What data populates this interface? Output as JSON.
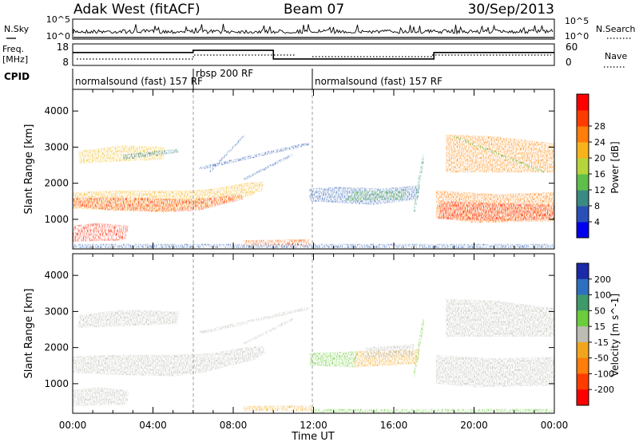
{
  "header": {
    "station": "Adak West (fitACF)",
    "beam": "Beam 07",
    "date": "30/Sep/2013"
  },
  "noise_panel": {
    "left_label": "N.Sky",
    "right_label": "N.Search",
    "left_ticks": [
      "10^5",
      "10^0"
    ],
    "right_ticks": [
      "10^5",
      "10^0"
    ]
  },
  "freq_panel": {
    "left_label_1": "Freq.",
    "left_label_2": "[MHz]",
    "right_label": "Nave",
    "left_ticks": [
      "18",
      "8"
    ],
    "right_ticks": [
      "60",
      "0"
    ]
  },
  "cpid_panel": {
    "label": "CPID",
    "segments": [
      {
        "label": "normalsound (fast) 157 RF",
        "start": 0.0,
        "end": 6.0
      },
      {
        "label": "rbsp 200 RF",
        "start": 6.0,
        "end": 12.0
      },
      {
        "label": "normalsound (fast) 157 RF",
        "start": 12.0,
        "end": 24.0
      }
    ]
  },
  "power_panel": {
    "ylabel": "Slant Range [km]",
    "yticks": [
      "1000",
      "2000",
      "3000",
      "4000"
    ],
    "colorbar_label": "Power [dB]",
    "colorbar_ticks": [
      "4",
      "8",
      "12",
      "16",
      "20",
      "24",
      "28"
    ],
    "colorbar_colors": [
      "#0000ee",
      "#2a4fb8",
      "#3a8a84",
      "#5fbf4a",
      "#b6d53a",
      "#f7b31c",
      "#ff7d0a",
      "#ff3c00",
      "#ff0000"
    ]
  },
  "velocity_panel": {
    "ylabel": "Slant Range [km]",
    "yticks": [
      "1000",
      "2000",
      "3000",
      "4000"
    ],
    "colorbar_label": "Velocity [m s^-1]",
    "colorbar_ticks": [
      "200",
      "100",
      "50",
      "15",
      "-15",
      "-50",
      "-100",
      "-200"
    ],
    "colorbar_colors": [
      "#1a2aa8",
      "#2f6fbf",
      "#3f9a6a",
      "#6ccd3c",
      "#bdbdb5",
      "#f2a51c",
      "#ff7d0a",
      "#ff3c00",
      "#ff0000"
    ]
  },
  "xaxis": {
    "label": "Time UT",
    "ticks": [
      "00:00",
      "04:00",
      "08:00",
      "12:00",
      "16:00",
      "20:00",
      "00:00"
    ]
  },
  "chart_data": {
    "type": "heatmap",
    "title": "Adak West (fitACF)  Beam 07  30/Sep/2013",
    "xlabel": "Time UT",
    "ylabel": "Slant Range [km]",
    "xlim": [
      0,
      24
    ],
    "ylim": [
      180,
      4600
    ],
    "grid": false,
    "freq_segments": [
      {
        "start": 0.0,
        "end": 6.0,
        "freq": 14
      },
      {
        "start": 6.0,
        "end": 10.0,
        "freq": 15
      },
      {
        "start": 10.0,
        "end": 18.0,
        "freq": 11
      },
      {
        "start": 18.0,
        "end": 24.0,
        "freq": 14
      }
    ],
    "power_features": [
      {
        "t0": 0.0,
        "t1": 1.2,
        "r0": 1300,
        "r1": 1650,
        "power": 26
      },
      {
        "t0": 1.2,
        "t1": 5.0,
        "r0": 1200,
        "r1": 1700,
        "power": 27
      },
      {
        "t0": 5.0,
        "t1": 7.0,
        "r0": 1150,
        "r1": 1800,
        "power": 25
      },
      {
        "t0": 7.0,
        "t1": 9.5,
        "r0": 1550,
        "r1": 2100,
        "power": 20
      },
      {
        "t0": 0.0,
        "t1": 2.5,
        "r0": 400,
        "r1": 800,
        "power": 26
      },
      {
        "t0": 0.5,
        "t1": 4.5,
        "r0": 2600,
        "r1": 3000,
        "power": 18
      },
      {
        "t0": 12.0,
        "t1": 17.0,
        "r0": 1500,
        "r1": 1900,
        "power": 12
      },
      {
        "t0": 18.2,
        "t1": 24.0,
        "r0": 900,
        "r1": 1700,
        "power": 27
      },
      {
        "t0": 18.5,
        "t1": 24.0,
        "r0": 2300,
        "r1": 3300,
        "power": 18
      },
      {
        "t0": 9.8,
        "t1": 11.8,
        "r0": 250,
        "r1": 400,
        "power": 26
      }
    ]
  }
}
